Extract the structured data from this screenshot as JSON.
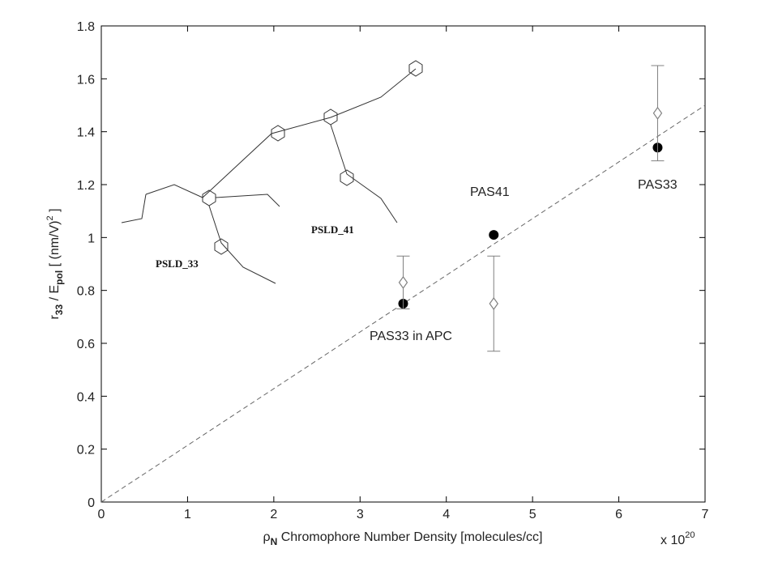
{
  "chart_data": {
    "type": "scatter",
    "xlim": [
      0,
      7
    ],
    "xticks": [
      0,
      1,
      2,
      3,
      4,
      5,
      6,
      7
    ],
    "ylim": [
      0,
      1.8
    ],
    "yticks": [
      0,
      0.2,
      0.4,
      0.6,
      0.8,
      1,
      1.2,
      1.4,
      1.6,
      1.8
    ],
    "x_multiplier": {
      "prefix": "x 10",
      "exponent": "20"
    },
    "xlabel": {
      "symbol": "ρ",
      "subscript": "N",
      "text": "  Chromophore Number Density  [molecules/cc]"
    },
    "ylabel": {
      "parts": [
        "r",
        "33",
        " / E",
        "pol",
        "   [ (nm/V)",
        "2",
        " ]"
      ]
    },
    "series": [
      {
        "marker": "circle",
        "color": "#000000",
        "x": [
          3.5,
          4.55,
          6.45
        ],
        "values": [
          0.75,
          1.01,
          1.34
        ]
      },
      {
        "marker": "diamond",
        "color": "#808080",
        "x": [
          3.5,
          4.55,
          6.45
        ],
        "values": [
          0.83,
          0.75,
          1.47
        ],
        "errors": [
          0.1,
          0.18,
          0.18
        ]
      }
    ],
    "fit_line": {
      "color": "#666666",
      "x": [
        0,
        7
      ],
      "values": [
        0,
        1.5
      ]
    },
    "annotations": [
      "PAS41",
      "PAS33",
      "PAS33 in APC"
    ],
    "structure_labels": [
      "PSLD_33",
      "PSLD_41"
    ]
  }
}
